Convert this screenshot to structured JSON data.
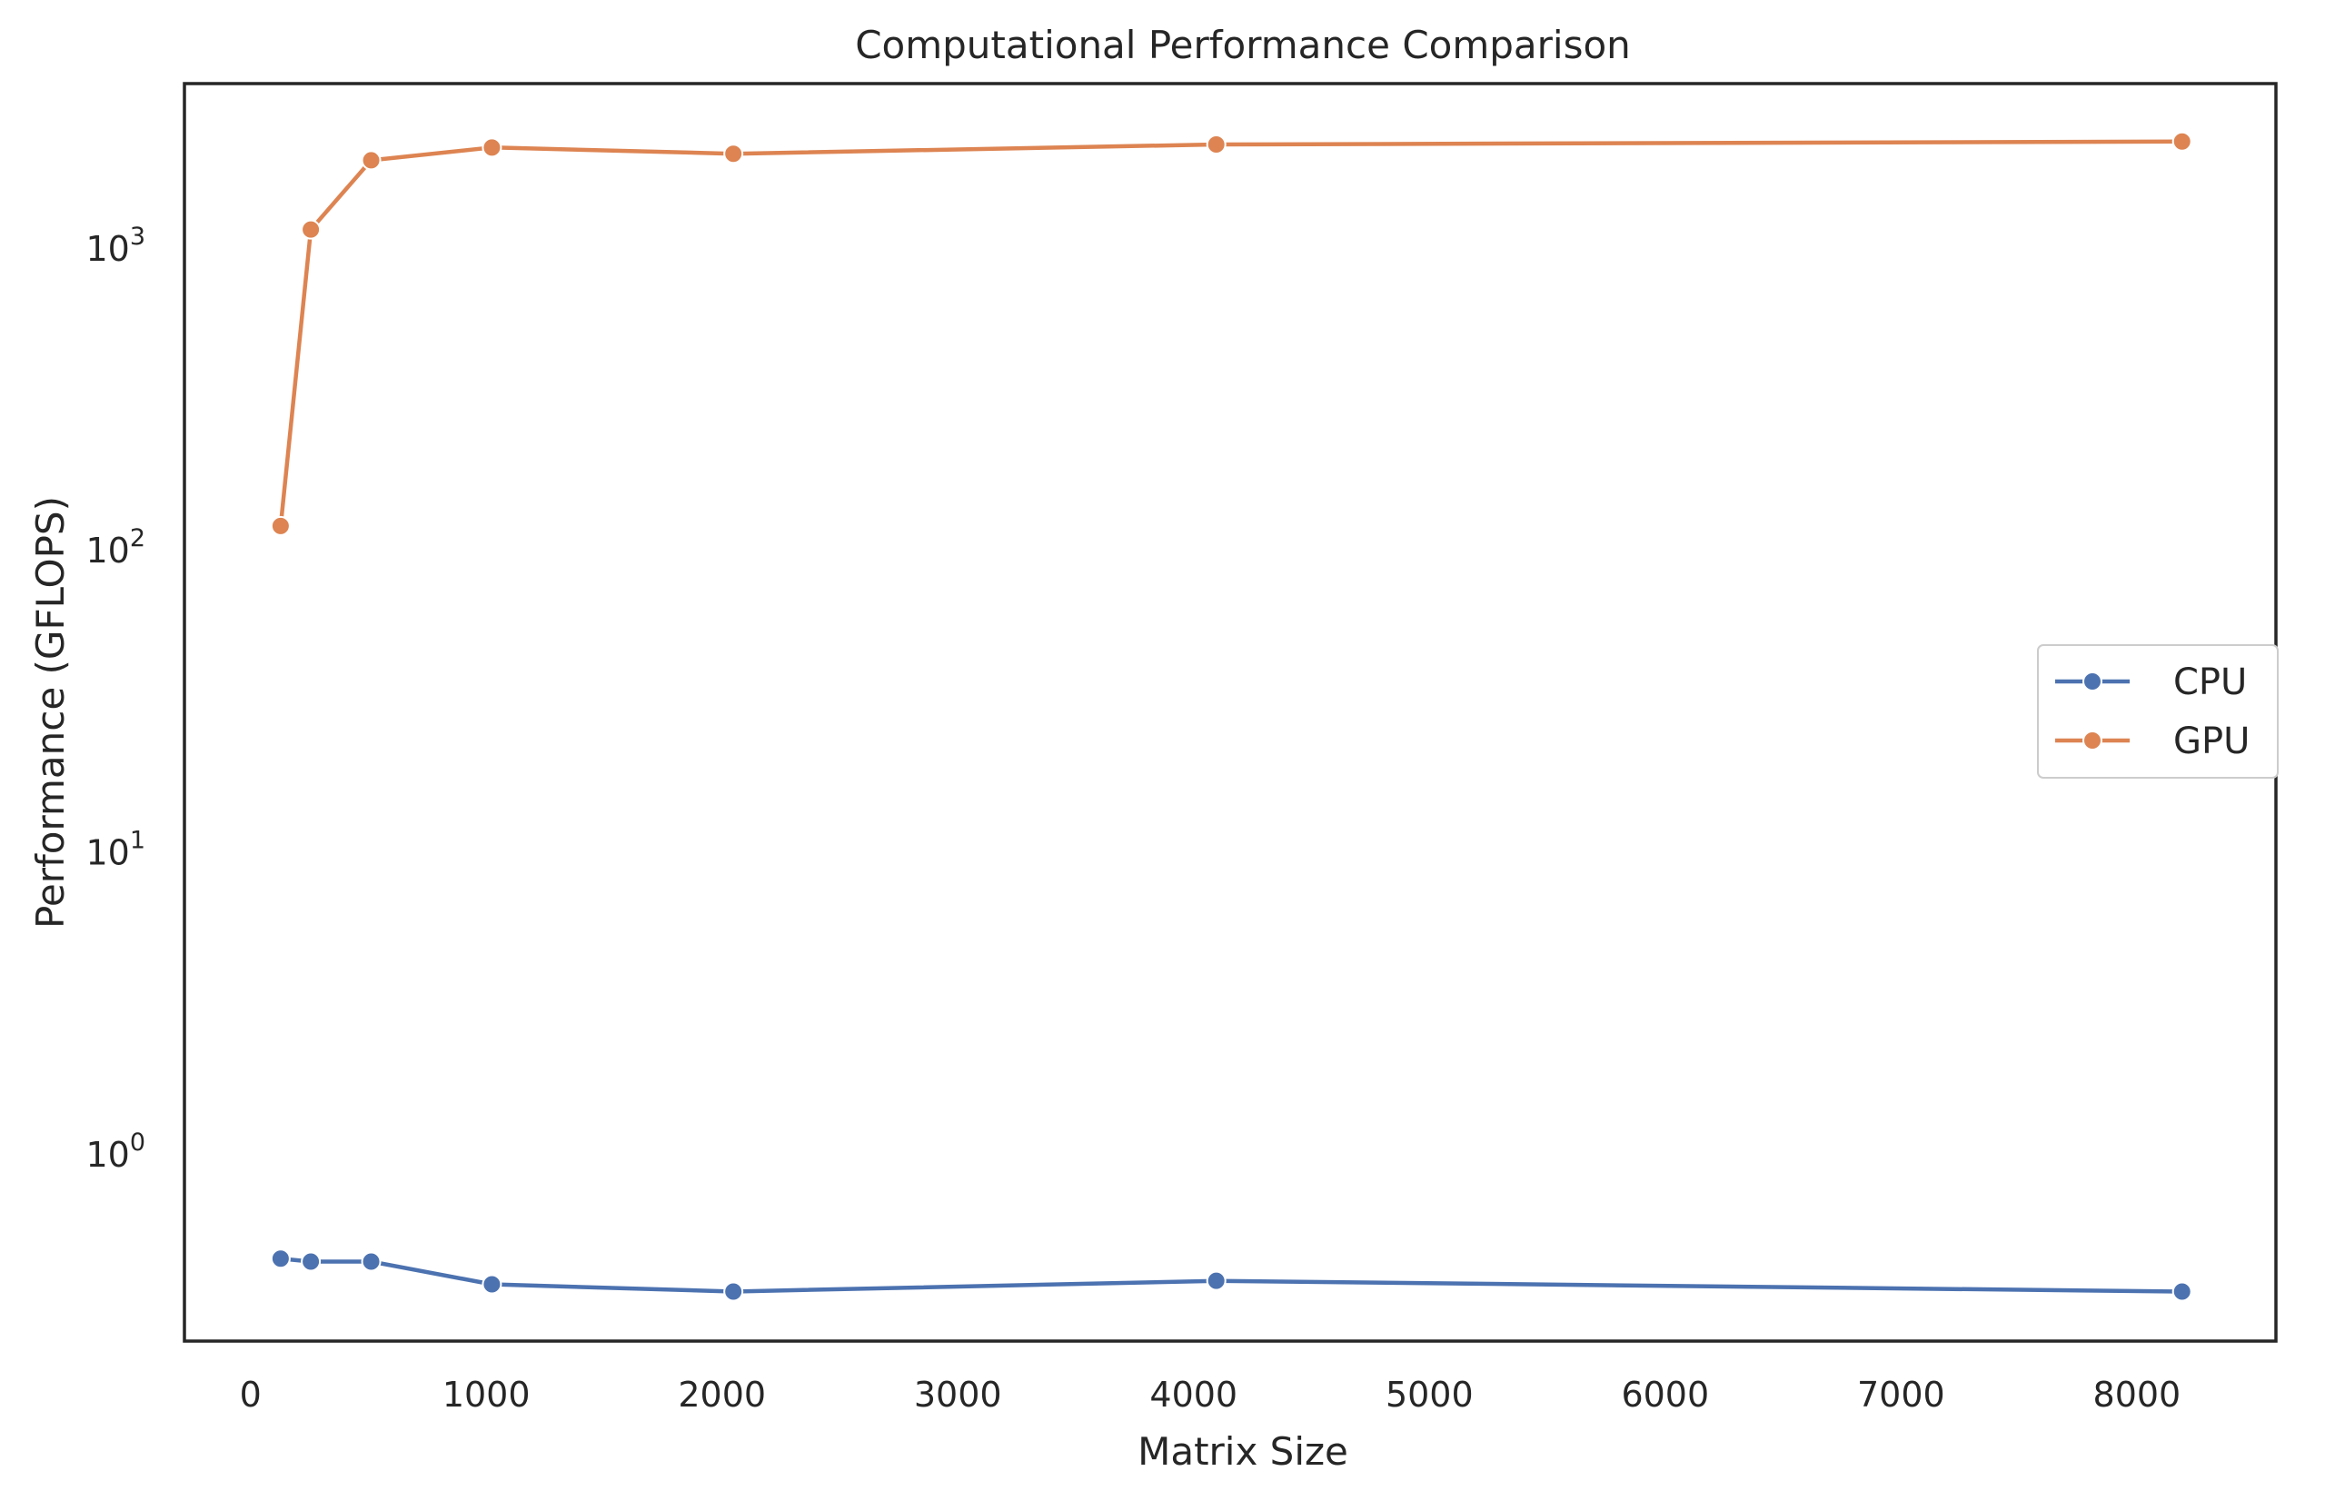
{
  "chart_data": {
    "type": "line",
    "title": "Computational Performance Comparison",
    "xlabel": "Matrix Size",
    "ylabel": "Performance (GFLOPS)",
    "y_scale": "log",
    "xlim": [
      -280,
      8590
    ],
    "ylim": [
      0.24,
      3500
    ],
    "x_ticks": [
      0,
      1000,
      2000,
      3000,
      4000,
      5000,
      6000,
      7000,
      8000
    ],
    "x_tick_labels": [
      "0",
      "1000",
      "2000",
      "3000",
      "4000",
      "5000",
      "6000",
      "7000",
      "8000"
    ],
    "y_ticks": [
      1,
      10,
      100,
      1000
    ],
    "y_tick_labels": [
      {
        "base": "10",
        "exp": "0"
      },
      {
        "base": "10",
        "exp": "1"
      },
      {
        "base": "10",
        "exp": "2"
      },
      {
        "base": "10",
        "exp": "3"
      }
    ],
    "grid": false,
    "legend_position": "center-right",
    "x": [
      128,
      256,
      512,
      1024,
      2048,
      4096,
      8192
    ],
    "series": [
      {
        "name": "CPU",
        "color": "#4c72b0",
        "marker": "circle",
        "values": [
          0.45,
          0.44,
          0.44,
          0.37,
          0.35,
          0.38,
          0.35
        ]
      },
      {
        "name": "GPU",
        "color": "#dd8452",
        "marker": "circle",
        "values": [
          120,
          1150,
          1950,
          2150,
          2050,
          2200,
          2250
        ]
      }
    ]
  }
}
